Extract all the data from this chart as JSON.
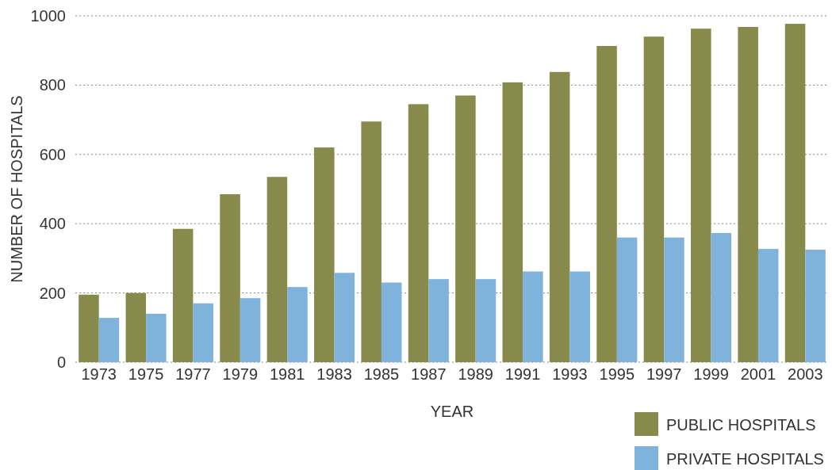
{
  "chart_data": {
    "type": "bar",
    "xlabel": "YEAR",
    "ylabel": "NUMBER OF HOSPITALS",
    "categories": [
      "1973",
      "1975",
      "1977",
      "1979",
      "1981",
      "1983",
      "1985",
      "1987",
      "1989",
      "1991",
      "1993",
      "1995",
      "1997",
      "1999",
      "2001",
      "2003"
    ],
    "series": [
      {
        "name": "PUBLIC HOSPITALS",
        "color": "#878a4b",
        "values": [
          195,
          200,
          385,
          485,
          535,
          620,
          695,
          745,
          770,
          808,
          838,
          913,
          940,
          963,
          968,
          977
        ]
      },
      {
        "name": "PRIVATE HOSPITALS",
        "color": "#7fb3dc",
        "values": [
          128,
          140,
          170,
          185,
          217,
          258,
          230,
          240,
          240,
          262,
          262,
          360,
          360,
          373,
          327,
          325
        ]
      }
    ],
    "ylim": [
      0,
      1000
    ],
    "yticks": [
      0,
      200,
      400,
      600,
      800,
      1000
    ],
    "grid": "y",
    "legend": "bottom right"
  }
}
